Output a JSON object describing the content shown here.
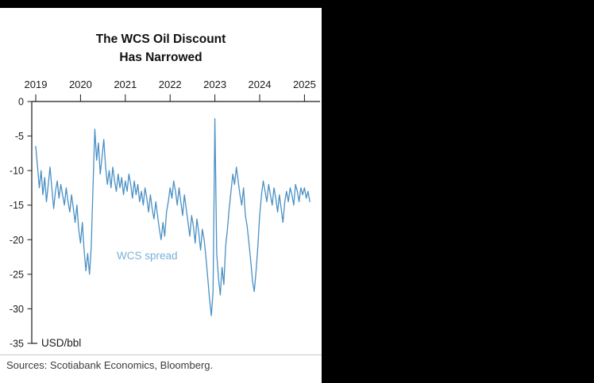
{
  "page": {
    "background_color": "#000000",
    "panel_color": "#ffffff"
  },
  "title": {
    "line1": "The WCS Oil Discount",
    "line2": "Has Narrowed"
  },
  "footer": {
    "sources": "Sources: Scotiabank Economics, Bloomberg."
  },
  "chart_data": {
    "type": "line",
    "title": "The WCS Oil Discount Has Narrowed",
    "unit_label": "USD/bbl",
    "series_label": "WCS spread",
    "line_color": "#4a90c4",
    "label_color": "#79b1d8",
    "axis_color": "#1a1a1a",
    "legend_position": "inside",
    "grid": false,
    "x_axis": {
      "position": "top",
      "ticks": [
        2019,
        2020,
        2021,
        2022,
        2023,
        2024,
        2025
      ],
      "range": [
        2019,
        2025.35
      ]
    },
    "y_axis": {
      "ticks": [
        0,
        -5,
        -10,
        -15,
        -20,
        -25,
        -30,
        -35
      ],
      "range": [
        -35,
        0
      ]
    },
    "x_start": 2019.0,
    "x_step": 0.04,
    "values": [
      -6.5,
      -9.5,
      -12.5,
      -10.0,
      -13.5,
      -11.0,
      -14.5,
      -12.0,
      -9.5,
      -12.5,
      -15.5,
      -13.0,
      -11.5,
      -14.0,
      -12.0,
      -13.5,
      -15.0,
      -12.5,
      -14.5,
      -16.0,
      -13.5,
      -15.5,
      -17.5,
      -15.0,
      -18.5,
      -20.5,
      -17.5,
      -21.5,
      -24.5,
      -22.0,
      -25.0,
      -21.0,
      -12.0,
      -4.0,
      -8.5,
      -6.0,
      -10.5,
      -8.0,
      -5.5,
      -9.5,
      -12.0,
      -10.0,
      -12.5,
      -9.5,
      -11.5,
      -13.0,
      -10.5,
      -12.5,
      -11.0,
      -13.5,
      -11.5,
      -13.0,
      -10.5,
      -12.0,
      -14.0,
      -11.5,
      -13.5,
      -12.0,
      -14.5,
      -13.0,
      -15.0,
      -12.5,
      -14.0,
      -16.0,
      -13.5,
      -15.5,
      -17.0,
      -14.5,
      -16.5,
      -18.5,
      -20.0,
      -17.5,
      -19.5,
      -16.0,
      -14.5,
      -12.5,
      -14.0,
      -11.5,
      -13.0,
      -15.0,
      -12.5,
      -14.5,
      -16.5,
      -13.5,
      -15.5,
      -17.5,
      -19.5,
      -16.5,
      -18.0,
      -20.5,
      -17.0,
      -19.0,
      -21.5,
      -18.5,
      -20.0,
      -22.5,
      -25.5,
      -28.5,
      -31.0,
      -27.5,
      -2.5,
      -22.0,
      -25.5,
      -28.0,
      -24.0,
      -26.5,
      -21.0,
      -18.5,
      -15.5,
      -13.0,
      -10.5,
      -12.0,
      -9.5,
      -11.5,
      -13.5,
      -15.0,
      -12.5,
      -16.5,
      -18.0,
      -20.5,
      -23.0,
      -26.0,
      -27.5,
      -24.5,
      -21.0,
      -16.5,
      -13.5,
      -11.5,
      -13.0,
      -14.5,
      -12.0,
      -13.5,
      -15.0,
      -12.5,
      -14.0,
      -16.0,
      -13.5,
      -15.5,
      -17.5,
      -14.5,
      -13.0,
      -14.5,
      -12.5,
      -13.5,
      -15.0,
      -12.0,
      -13.0,
      -14.5,
      -12.5,
      -13.5,
      -12.5,
      -14.0,
      -13.0,
      -14.5
    ]
  }
}
